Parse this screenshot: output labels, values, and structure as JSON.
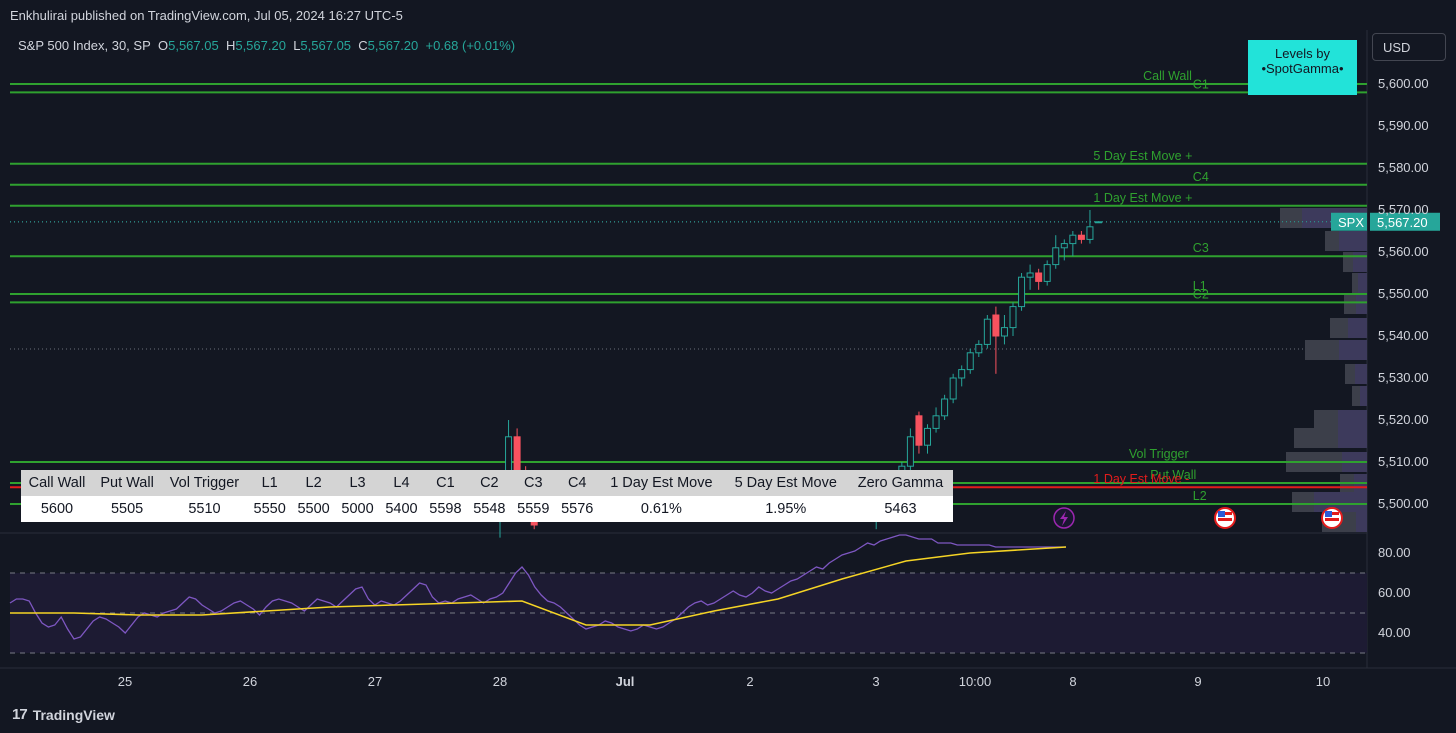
{
  "header": {
    "publisher": "Enkhulirai published on TradingView.com, Jul 05, 2024 16:27 UTC-5",
    "symbol": "S&P 500 Index, 30, SP",
    "o_label": "O",
    "o_value": "5,567.05",
    "h_label": "H",
    "h_value": "5,567.20",
    "l_label": "L",
    "l_value": "5,567.05",
    "c_label": "C",
    "c_value": "5,567.20",
    "change": "+0.68 (+0.01%)"
  },
  "currency_button": "USD",
  "badge": {
    "line1": "Levels by",
    "line2": "•SpotGamma•"
  },
  "price_tag": {
    "symbol": "SPX",
    "value": "5,567.20"
  },
  "footer": {
    "brand": "TradingView",
    "logo": "17"
  },
  "colors": {
    "background": "#131722",
    "up": "#26a69a",
    "down": "#f7525f",
    "level_green": "#2fa12f",
    "level_red": "#e31c1c",
    "rsi": "#7e57c2",
    "rsi_ma": "#f5d425",
    "badge": "#22e3d9"
  },
  "table": {
    "headers": [
      "Call Wall",
      "Put Wall",
      "Vol Trigger",
      "L1",
      "L2",
      "L3",
      "L4",
      "C1",
      "C2",
      "C3",
      "C4",
      "1 Day Est Move",
      "5 Day Est Move",
      "Zero Gamma"
    ],
    "values": [
      "5600",
      "5505",
      "5510",
      "5550",
      "5500",
      "5000",
      "5400",
      "5598",
      "5548",
      "5559",
      "5576",
      "0.61%",
      "1.95%",
      "5463"
    ]
  },
  "chart_data": [
    {
      "type": "candlestick",
      "title": "S&P 500 Index, 30, SP",
      "ylim": [
        5495,
        5605
      ],
      "y_ticks": [
        "5,500.00",
        "5,510.00",
        "5,520.00",
        "5,530.00",
        "5,540.00",
        "5,550.00",
        "5,560.00",
        "5,570.00",
        "5,580.00",
        "5,590.00",
        "5,600.00"
      ],
      "x_ticks": [
        "25",
        "26",
        "27",
        "28",
        "Jul",
        "2",
        "3",
        "10:00",
        "8",
        "9",
        "10"
      ],
      "levels": [
        {
          "label": "Call Wall",
          "value": 5600,
          "color": "#2fa12f"
        },
        {
          "label": "C1",
          "value": 5598,
          "color": "#2fa12f"
        },
        {
          "label": "5 Day Est Move +",
          "value": 5581,
          "color": "#2fa12f"
        },
        {
          "label": "C4",
          "value": 5576,
          "color": "#2fa12f"
        },
        {
          "label": "1 Day Est Move +",
          "value": 5571,
          "color": "#2fa12f"
        },
        {
          "label": "C3",
          "value": 5559,
          "color": "#2fa12f"
        },
        {
          "label": "L1",
          "value": 5550,
          "color": "#2fa12f"
        },
        {
          "label": "C2",
          "value": 5548,
          "color": "#2fa12f"
        },
        {
          "label": "Vol Trigger",
          "value": 5510,
          "color": "#2fa12f"
        },
        {
          "label": "Put Wall",
          "value": 5505,
          "color": "#2fa12f"
        },
        {
          "label": "1 Day Est Move -",
          "value": 5504,
          "color": "#e31c1c"
        },
        {
          "label": "L2",
          "value": 5500,
          "color": "#2fa12f"
        }
      ],
      "candles": [
        {
          "x": 0.0,
          "o": 5497,
          "h": 5501,
          "l": 5492,
          "c": 5500
        },
        {
          "x": 1.0,
          "o": 5505,
          "h": 5520,
          "l": 5500,
          "c": 5516
        },
        {
          "x": 2.0,
          "o": 5516,
          "h": 5518,
          "l": 5505,
          "c": 5507
        },
        {
          "x": 3.0,
          "o": 5507,
          "h": 5509,
          "l": 5496,
          "c": 5498
        },
        {
          "x": 4.0,
          "o": 5498,
          "h": 5500,
          "l": 5494,
          "c": 5495
        },
        {
          "x": 44.0,
          "o": 5496,
          "h": 5499,
          "l": 5494,
          "c": 5497
        },
        {
          "x": 45.0,
          "o": 5497,
          "h": 5501,
          "l": 5496,
          "c": 5500
        },
        {
          "x": 46.0,
          "o": 5500,
          "h": 5503,
          "l": 5498,
          "c": 5502
        },
        {
          "x": 47.0,
          "o": 5502,
          "h": 5510,
          "l": 5501,
          "c": 5509
        },
        {
          "x": 48.0,
          "o": 5509,
          "h": 5518,
          "l": 5508,
          "c": 5516
        },
        {
          "x": 49.0,
          "o": 5521,
          "h": 5522,
          "l": 5512,
          "c": 5514
        },
        {
          "x": 50.0,
          "o": 5514,
          "h": 5519,
          "l": 5512,
          "c": 5518
        },
        {
          "x": 51.0,
          "o": 5518,
          "h": 5523,
          "l": 5517,
          "c": 5521
        },
        {
          "x": 52.0,
          "o": 5521,
          "h": 5526,
          "l": 5520,
          "c": 5525
        },
        {
          "x": 53.0,
          "o": 5525,
          "h": 5531,
          "l": 5524,
          "c": 5530
        },
        {
          "x": 54.0,
          "o": 5530,
          "h": 5533,
          "l": 5528,
          "c": 5532
        },
        {
          "x": 55.0,
          "o": 5532,
          "h": 5537,
          "l": 5531,
          "c": 5536
        },
        {
          "x": 56.0,
          "o": 5536,
          "h": 5539,
          "l": 5535,
          "c": 5538
        },
        {
          "x": 57.0,
          "o": 5538,
          "h": 5545,
          "l": 5537,
          "c": 5544
        },
        {
          "x": 58.0,
          "o": 5545,
          "h": 5547,
          "l": 5531,
          "c": 5540
        },
        {
          "x": 59.0,
          "o": 5540,
          "h": 5545,
          "l": 5538,
          "c": 5542
        },
        {
          "x": 60.0,
          "o": 5542,
          "h": 5548,
          "l": 5540,
          "c": 5547
        },
        {
          "x": 61.0,
          "o": 5547,
          "h": 5555,
          "l": 5546,
          "c": 5554
        },
        {
          "x": 62.0,
          "o": 5554,
          "h": 5557,
          "l": 5551,
          "c": 5555
        },
        {
          "x": 63.0,
          "o": 5555,
          "h": 5556,
          "l": 5551,
          "c": 5553
        },
        {
          "x": 64.0,
          "o": 5553,
          "h": 5558,
          "l": 5552,
          "c": 5557
        },
        {
          "x": 65.0,
          "o": 5557,
          "h": 5564,
          "l": 5556,
          "c": 5561
        },
        {
          "x": 66.0,
          "o": 5561,
          "h": 5563,
          "l": 5558,
          "c": 5562
        },
        {
          "x": 67.0,
          "o": 5562,
          "h": 5565,
          "l": 5559,
          "c": 5564
        },
        {
          "x": 68.0,
          "o": 5564,
          "h": 5565,
          "l": 5562,
          "c": 5563
        },
        {
          "x": 69.0,
          "o": 5563,
          "h": 5570,
          "l": 5562,
          "c": 5566
        },
        {
          "x": 70.0,
          "o": 5567.05,
          "h": 5567.2,
          "l": 5567.05,
          "c": 5567.2
        }
      ]
    },
    {
      "type": "line",
      "ylim": [
        25,
        95
      ],
      "y_ticks": [
        "40.00",
        "60.00",
        "80.00"
      ],
      "bands": [
        30,
        50,
        70
      ],
      "series": [
        {
          "color": "#7e57c2",
          "x": [
            0,
            1,
            2,
            3,
            4,
            5,
            6,
            7,
            8,
            9,
            10,
            11,
            12,
            13,
            14,
            15,
            16,
            17,
            18,
            19,
            20,
            21,
            22,
            23,
            24,
            25,
            26,
            27,
            28,
            29,
            30,
            31,
            32,
            33,
            34,
            35,
            36,
            37,
            38,
            39,
            40,
            41,
            42,
            43,
            44,
            45,
            46,
            47,
            48,
            49,
            50,
            51,
            52,
            53,
            54,
            55,
            56,
            57,
            58,
            59,
            60,
            61,
            62,
            63,
            64,
            65,
            66,
            67,
            68,
            69,
            70,
            71,
            72,
            73,
            74,
            75,
            76,
            77,
            78,
            79,
            80,
            81,
            82,
            83,
            84,
            85,
            86,
            87,
            88,
            89,
            90,
            91,
            92,
            93,
            94,
            95,
            96,
            97,
            98,
            99,
            100,
            101,
            102,
            103,
            104,
            105,
            106,
            107,
            108,
            109,
            110,
            111,
            112,
            113,
            114,
            115,
            116,
            117,
            118,
            119,
            120,
            121,
            122,
            123,
            124,
            125,
            126,
            127,
            128,
            129,
            130,
            131,
            132,
            133,
            134,
            135,
            136,
            137,
            138,
            139,
            140,
            141,
            142,
            143,
            144,
            145,
            146,
            147,
            148,
            149,
            150,
            151,
            152,
            153,
            154,
            155,
            156,
            157,
            158,
            159,
            160,
            161,
            162,
            163,
            164,
            165
          ],
          "values": [
            55,
            57,
            57,
            56,
            50,
            45,
            43,
            44,
            48,
            42,
            37,
            38,
            42,
            46,
            48,
            47,
            45,
            43,
            40,
            44,
            48,
            50,
            49,
            48,
            50,
            51,
            52,
            55,
            58,
            57,
            54,
            52,
            50,
            51,
            53,
            55,
            56,
            54,
            52,
            49,
            53,
            56,
            57,
            56,
            55,
            53,
            51,
            54,
            57,
            56,
            55,
            53,
            56,
            59,
            62,
            63,
            57,
            54,
            56,
            55,
            54,
            56,
            59,
            62,
            65,
            64,
            58,
            55,
            56,
            55,
            57,
            58,
            59,
            57,
            55,
            57,
            58,
            60,
            65,
            70,
            73,
            69,
            63,
            59,
            56,
            55,
            53,
            50,
            47,
            44,
            42,
            43,
            44,
            46,
            45,
            43,
            42,
            41,
            42,
            44,
            43,
            42,
            43,
            45,
            47,
            50,
            53,
            55,
            56,
            54,
            55,
            57,
            59,
            61,
            59,
            58,
            60,
            63,
            61,
            60,
            62,
            64,
            66,
            67,
            69,
            71,
            73,
            72,
            75,
            77,
            79,
            80,
            81,
            83,
            85,
            84,
            86,
            87,
            88,
            89,
            89,
            88,
            87,
            87,
            87,
            85,
            85,
            85,
            84,
            84,
            84,
            84,
            84,
            84,
            83,
            83,
            83,
            83,
            83,
            83,
            83,
            83,
            83,
            83,
            83,
            83
          ]
        },
        {
          "color": "#f5d425",
          "x": [
            0,
            10,
            20,
            30,
            40,
            50,
            60,
            70,
            80,
            90,
            100,
            110,
            120,
            130,
            140,
            150,
            160,
            165
          ],
          "values": [
            50,
            50,
            49,
            49,
            51,
            53,
            54,
            55,
            56,
            44,
            44,
            51,
            57,
            67,
            76,
            80,
            82,
            83
          ]
        }
      ]
    }
  ]
}
